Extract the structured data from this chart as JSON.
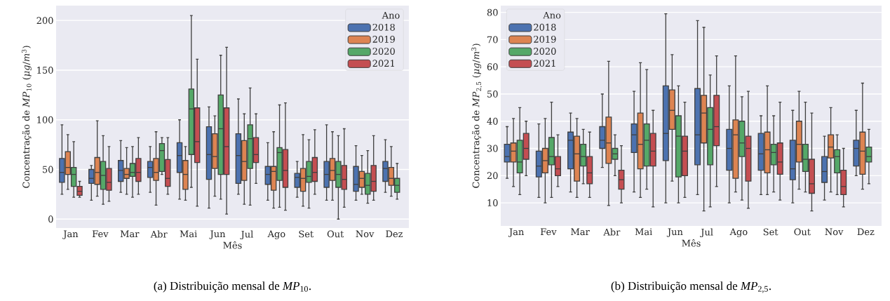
{
  "chart_data": [
    {
      "type": "box",
      "xlabel": "Mês",
      "ylabel": "Concentração de *MP*$_{10}$ (*μg*/*m*$^{3}$)",
      "legend_title": "Ano",
      "legend": "top right",
      "grid": "y",
      "categories": [
        "Jan",
        "Fev",
        "Mar",
        "Abr",
        "Mai",
        "Jun",
        "Jul",
        "Ago",
        "Set",
        "Out",
        "Nov",
        "Dez"
      ],
      "ylim": [
        -9,
        215
      ],
      "yticks": [
        0,
        50,
        100,
        150,
        200
      ],
      "annotations": [
        "(a) Distribuição mensal de *MP*$_{10}$."
      ],
      "series": [
        {
          "name": "2018",
          "color": "#4c72b0",
          "boxes": [
            {
              "low": 25,
              "q1": 37,
              "median": 47,
              "q3": 61,
              "high": 95
            },
            {
              "low": 19,
              "q1": 36,
              "median": 41,
              "q3": 50,
              "high": 54
            },
            {
              "low": 27,
              "q1": 38,
              "median": 49,
              "q3": 59,
              "high": 79
            },
            {
              "low": 27,
              "q1": 42,
              "median": 52,
              "q3": 58,
              "high": 73
            },
            {
              "low": 20,
              "q1": 47,
              "median": 64,
              "q3": 77,
              "high": 100
            },
            {
              "low": 11,
              "q1": 40,
              "median": 65,
              "q3": 93,
              "high": 113
            },
            {
              "low": 25,
              "q1": 36,
              "median": 64,
              "q3": 86,
              "high": 121
            },
            {
              "low": 19,
              "q1": 35,
              "median": 45,
              "q3": 53,
              "high": 77
            },
            {
              "low": 22,
              "q1": 32,
              "median": 42,
              "q3": 46,
              "high": 58
            },
            {
              "low": 19,
              "q1": 32,
              "median": 45,
              "q3": 58,
              "high": 95
            },
            {
              "low": 19,
              "q1": 28,
              "median": 35,
              "q3": 53,
              "high": 74
            },
            {
              "low": 27,
              "q1": 38,
              "median": 51,
              "q3": 58,
              "high": 80
            }
          ]
        },
        {
          "name": "2019",
          "color": "#dd8452",
          "boxes": [
            {
              "low": 30,
              "q1": 45,
              "median": 52,
              "q3": 68,
              "high": 85
            },
            {
              "low": 23,
              "q1": 35,
              "median": 47,
              "q3": 62,
              "high": 99
            },
            {
              "low": 25,
              "q1": 41,
              "median": 45,
              "q3": 51,
              "high": 72
            },
            {
              "low": 14,
              "q1": 39,
              "median": 47,
              "q3": 61,
              "high": 88
            },
            {
              "low": 19,
              "q1": 30,
              "median": 45,
              "q3": 59,
              "high": 73
            },
            {
              "low": 23,
              "q1": 51,
              "median": 63,
              "q3": 86,
              "high": 104
            },
            {
              "low": 15,
              "q1": 39,
              "median": 58,
              "q3": 79,
              "high": 106
            },
            {
              "low": 11,
              "q1": 29,
              "median": 48,
              "q3": 53,
              "high": 88
            },
            {
              "low": 13,
              "q1": 28,
              "median": 41,
              "q3": 51,
              "high": 85
            },
            {
              "low": 19,
              "q1": 39,
              "median": 49,
              "q3": 61,
              "high": 88
            },
            {
              "low": 25,
              "q1": 32,
              "median": 41,
              "q3": 48,
              "high": 64
            },
            {
              "low": 23,
              "q1": 34,
              "median": 41,
              "q3": 52,
              "high": 73
            }
          ]
        },
        {
          "name": "2020",
          "color": "#55a868",
          "boxes": [
            {
              "low": 22,
              "q1": 33,
              "median": 45,
              "q3": 52,
              "high": 78
            },
            {
              "low": 15,
              "q1": 30,
              "median": 44,
              "q3": 58,
              "high": 84
            },
            {
              "low": 22,
              "q1": 43,
              "median": 47,
              "q3": 56,
              "high": 73
            },
            {
              "low": 45,
              "q1": 48,
              "median": 69,
              "q3": 76,
              "high": 82
            },
            {
              "low": 32,
              "q1": 65,
              "median": 111,
              "q3": 131,
              "high": 205
            },
            {
              "low": 20,
              "q1": 45,
              "median": 91,
              "q3": 125,
              "high": 165
            },
            {
              "low": 14,
              "q1": 51,
              "median": 81,
              "q3": 95,
              "high": 132
            },
            {
              "low": 12,
              "q1": 39,
              "median": 67,
              "q3": 72,
              "high": 115
            },
            {
              "low": 11,
              "q1": 37,
              "median": 43,
              "q3": 58,
              "high": 80
            },
            {
              "low": 0,
              "q1": 32,
              "median": 45,
              "q3": 58,
              "high": 84
            },
            {
              "low": 16,
              "q1": 25,
              "median": 34,
              "q3": 46,
              "high": 69
            },
            {
              "low": 20,
              "q1": 27,
              "median": 34,
              "q3": 41,
              "high": 56
            }
          ]
        },
        {
          "name": "2021",
          "color": "#c44e52",
          "boxes": [
            {
              "low": 22,
              "q1": 24,
              "median": 28,
              "q3": 33,
              "high": 38
            },
            {
              "low": 18,
              "q1": 29,
              "median": 37,
              "q3": 51,
              "high": 73
            },
            {
              "low": 25,
              "q1": 38,
              "median": 47,
              "q3": 61,
              "high": 82
            },
            {
              "low": 25,
              "q1": 33,
              "median": 41,
              "q3": 60,
              "high": 82
            },
            {
              "low": 13,
              "q1": 57,
              "median": 78,
              "q3": 112,
              "high": 161
            },
            {
              "low": 5,
              "q1": 45,
              "median": 73,
              "q3": 112,
              "high": 173
            },
            {
              "low": 36,
              "q1": 57,
              "median": 65,
              "q3": 82,
              "high": 106
            },
            {
              "low": 9,
              "q1": 32,
              "median": 49,
              "q3": 70,
              "high": 117
            },
            {
              "low": 25,
              "q1": 38,
              "median": 47,
              "q3": 62,
              "high": 90
            },
            {
              "low": 12,
              "q1": 30,
              "median": 40,
              "q3": 54,
              "high": 91
            },
            {
              "low": 19,
              "q1": 28,
              "median": 38,
              "q3": 54,
              "high": 84
            },
            null
          ]
        }
      ]
    },
    {
      "type": "box",
      "xlabel": "Mês",
      "ylabel": "Concentração de *MP*$_{2,5}$ (*μg*/*m*$^{3}$)",
      "legend_title": "Ano",
      "legend": "top left",
      "grid": "y",
      "categories": [
        "Jan",
        "Fev",
        "Mar",
        "Abr",
        "Mai",
        "Jun",
        "Jul",
        "Ago",
        "Set",
        "Out",
        "Nov",
        "Dez"
      ],
      "ylim": [
        1.5,
        82.5
      ],
      "yticks": [
        10,
        20,
        30,
        40,
        50,
        60,
        70,
        80
      ],
      "annotations": [
        "(b) Distribuição mensal de *MP*$_{2,5}$."
      ],
      "series": [
        {
          "name": "2018",
          "color": "#4c72b0",
          "boxes": [
            {
              "low": 19,
              "q1": 25,
              "median": 27,
              "q3": 31.5,
              "high": 38
            },
            {
              "low": 12,
              "q1": 19.5,
              "median": 23.5,
              "q3": 29,
              "high": 39
            },
            {
              "low": 14,
              "q1": 22.5,
              "median": 33,
              "q3": 36,
              "high": 43
            },
            {
              "low": 23,
              "q1": 30,
              "median": 33,
              "q3": 38,
              "high": 50
            },
            {
              "low": 14,
              "q1": 28.5,
              "median": 35,
              "q3": 39,
              "high": 51
            },
            {
              "low": 10,
              "q1": 25.5,
              "median": 35.5,
              "q3": 53,
              "high": 79.5
            },
            {
              "low": 13,
              "q1": 24,
              "median": 35,
              "q3": 52,
              "high": 77
            },
            {
              "low": 10,
              "q1": 22,
              "median": 30,
              "q3": 37,
              "high": 53
            },
            {
              "low": 13,
              "q1": 22,
              "median": 28,
              "q3": 35.5,
              "high": 42
            },
            {
              "low": 10,
              "q1": 18.5,
              "median": 22.5,
              "q3": 33,
              "high": 44
            },
            {
              "low": 11,
              "q1": 17.5,
              "median": 21.5,
              "q3": 27,
              "high": 34.5
            },
            {
              "low": 20,
              "q1": 23.5,
              "median": 30,
              "q3": 33,
              "high": 44
            }
          ]
        },
        {
          "name": "2019",
          "color": "#dd8452",
          "boxes": [
            {
              "low": 16,
              "q1": 25,
              "median": 29,
              "q3": 32,
              "high": 41
            },
            {
              "low": 10,
              "q1": 21,
              "median": 25.5,
              "q3": 30,
              "high": 41
            },
            {
              "low": 12,
              "q1": 18,
              "median": 28,
              "q3": 34.5,
              "high": 41
            },
            {
              "low": 9,
              "q1": 24.5,
              "median": 32,
              "q3": 41.5,
              "high": 62
            },
            {
              "low": 12,
              "q1": 22.5,
              "median": 31.5,
              "q3": 43,
              "high": 61.5
            },
            {
              "low": 18,
              "q1": 37,
              "median": 44,
              "q3": 51.5,
              "high": 64.5
            },
            {
              "low": 7,
              "q1": 32,
              "median": 43,
              "q3": 49.5,
              "high": 74.5
            },
            {
              "low": 14,
              "q1": 19,
              "median": 35,
              "q3": 40.5,
              "high": 64
            },
            {
              "low": 13,
              "q1": 21,
              "median": 29.5,
              "q3": 36,
              "high": 53
            },
            {
              "low": 15,
              "q1": 25,
              "median": 31.5,
              "q3": 40,
              "high": 51
            },
            {
              "low": 14,
              "q1": 26.5,
              "median": 30.5,
              "q3": 35,
              "high": 45
            },
            {
              "low": 15,
              "q1": 20.5,
              "median": 29,
              "q3": 36,
              "high": 54
            }
          ]
        },
        {
          "name": "2020",
          "color": "#55a868",
          "boxes": [
            {
              "low": 13,
              "q1": 21,
              "median": 25,
              "q3": 33,
              "high": 45
            },
            {
              "low": 12,
              "q1": 24,
              "median": 27,
              "q3": 34,
              "high": 47
            },
            {
              "low": 17,
              "q1": 23.5,
              "median": 27,
              "q3": 31.5,
              "high": 37
            },
            {
              "low": 20,
              "q1": 26,
              "median": 28,
              "q3": 30,
              "high": 35
            },
            {
              "low": 15,
              "q1": 23.5,
              "median": 33,
              "q3": 39,
              "high": 59
            },
            {
              "low": 10,
              "q1": 19.5,
              "median": 34.5,
              "q3": 42,
              "high": 53
            },
            {
              "low": 8.5,
              "q1": 24,
              "median": 37,
              "q3": 45,
              "high": 57
            },
            {
              "low": 11,
              "q1": 27,
              "median": 32,
              "q3": 40,
              "high": 49
            },
            {
              "low": 14,
              "q1": 24,
              "median": 28.5,
              "q3": 31.5,
              "high": 42
            },
            {
              "low": 14,
              "q1": 21.5,
              "median": 26,
              "q3": 31.5,
              "high": 47
            },
            {
              "low": 13,
              "q1": 21,
              "median": 27,
              "q3": 29.5,
              "high": 35
            },
            {
              "low": 17,
              "q1": 25,
              "median": 27,
              "q3": 30.5,
              "high": 37
            }
          ]
        },
        {
          "name": "2021",
          "color": "#c44e52",
          "boxes": [
            {
              "low": 20,
              "q1": 26,
              "median": 30,
              "q3": 35.5,
              "high": 40
            },
            {
              "low": 16,
              "q1": 20,
              "median": 22.5,
              "q3": 27,
              "high": 35
            },
            {
              "low": 12,
              "q1": 17,
              "median": 21,
              "q3": 27,
              "high": 36
            },
            {
              "low": 10,
              "q1": 15,
              "median": 18.5,
              "q3": 22,
              "high": 31
            },
            {
              "low": 8.5,
              "q1": 23.5,
              "median": 29,
              "q3": 35.5,
              "high": 44
            },
            {
              "low": 12,
              "q1": 20,
              "median": 29,
              "q3": 34.5,
              "high": 47
            },
            {
              "low": 16,
              "q1": 31,
              "median": 38,
              "q3": 49.5,
              "high": 64
            },
            {
              "low": 8,
              "q1": 18,
              "median": 30,
              "q3": 34.5,
              "high": 51
            },
            {
              "low": 11,
              "q1": 20.5,
              "median": 25,
              "q3": 32,
              "high": 47
            },
            {
              "low": 7,
              "q1": 13.5,
              "median": 17,
              "q3": 26,
              "high": 43
            },
            {
              "low": 8.5,
              "q1": 13,
              "median": 16,
              "q3": 22,
              "high": 30
            },
            null
          ]
        }
      ]
    }
  ]
}
